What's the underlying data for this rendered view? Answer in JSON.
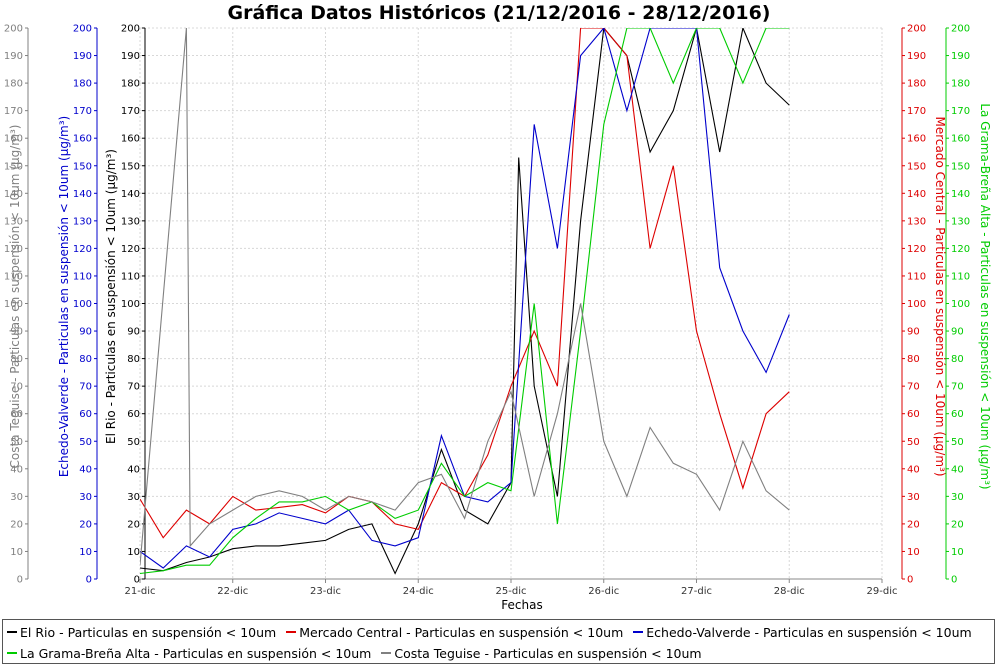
{
  "chart_data": {
    "type": "line",
    "title": "Gráfica Datos Históricos (21/12/2016 - 28/12/2016)",
    "xlabel": "Fechas",
    "x_ticks": [
      "21-dic",
      "22-dic",
      "23-dic",
      "24-dic",
      "25-dic",
      "26-dic",
      "27-dic",
      "28-dic",
      "29-dic"
    ],
    "xlim": [
      "2016-12-21",
      "2016-12-29"
    ],
    "y_ticks": [
      0,
      10,
      20,
      30,
      40,
      50,
      60,
      70,
      80,
      90,
      100,
      110,
      120,
      130,
      140,
      150,
      160,
      170,
      180,
      190,
      200
    ],
    "ylim": [
      0,
      200
    ],
    "grid": true,
    "legend_position": "bottom",
    "axes": [
      {
        "side": "left",
        "label": "Costa Teguise - Particulas en suspensión < 10um (µg/m³)",
        "color": "#808080"
      },
      {
        "side": "left",
        "label": "Echedo-Valverde - Particulas en suspensión < 10um (µg/m³)",
        "color": "#0000cc"
      },
      {
        "side": "left",
        "label": "El Rio - Particulas en suspensión < 10um (µg/m³)",
        "color": "#000000"
      },
      {
        "side": "right",
        "label": "Mercado Central - Particulas en suspensión < 10um (µg/m³)",
        "color": "#dd0000"
      },
      {
        "side": "right",
        "label": "La Grama-Breña Alta - Particulas en suspensión < 10um (µg/m³)",
        "color": "#00cc00"
      }
    ],
    "series": [
      {
        "name": "El Rio - Particulas en suspensión < 10um",
        "color": "#000000",
        "x": [
          "2016-12-21T00:00",
          "2016-12-21T06:00",
          "2016-12-21T12:00",
          "2016-12-21T18:00",
          "2016-12-22T00:00",
          "2016-12-22T06:00",
          "2016-12-22T12:00",
          "2016-12-22T18:00",
          "2016-12-23T00:00",
          "2016-12-23T06:00",
          "2016-12-23T12:00",
          "2016-12-23T18:00",
          "2016-12-24T00:00",
          "2016-12-24T06:00",
          "2016-12-24T12:00",
          "2016-12-24T18:00",
          "2016-12-25T00:00",
          "2016-12-25T02:00",
          "2016-12-25T06:00",
          "2016-12-25T12:00",
          "2016-12-25T18:00",
          "2016-12-26T00:00",
          "2016-12-26T06:00",
          "2016-12-26T12:00",
          "2016-12-26T18:00",
          "2016-12-27T00:00",
          "2016-12-27T06:00",
          "2016-12-27T12:00",
          "2016-12-27T18:00",
          "2016-12-28T00:00"
        ],
        "values": [
          4,
          3,
          6,
          8,
          11,
          12,
          12,
          13,
          14,
          18,
          20,
          2,
          20,
          47,
          25,
          20,
          35,
          153,
          70,
          30,
          130,
          200,
          190,
          155,
          170,
          200,
          155,
          200,
          180,
          172
        ]
      },
      {
        "name": "Mercado Central - Particulas en suspensión < 10um",
        "color": "#dd0000",
        "x": [
          "2016-12-21T00:00",
          "2016-12-21T06:00",
          "2016-12-21T12:00",
          "2016-12-21T18:00",
          "2016-12-22T00:00",
          "2016-12-22T06:00",
          "2016-12-22T12:00",
          "2016-12-22T18:00",
          "2016-12-23T00:00",
          "2016-12-23T06:00",
          "2016-12-23T12:00",
          "2016-12-23T18:00",
          "2016-12-24T00:00",
          "2016-12-24T06:00",
          "2016-12-24T12:00",
          "2016-12-24T18:00",
          "2016-12-25T00:00",
          "2016-12-25T06:00",
          "2016-12-25T12:00",
          "2016-12-25T18:00",
          "2016-12-26T00:00",
          "2016-12-26T06:00",
          "2016-12-26T12:00",
          "2016-12-26T18:00",
          "2016-12-27T00:00",
          "2016-12-27T06:00",
          "2016-12-27T12:00",
          "2016-12-27T18:00",
          "2016-12-28T00:00"
        ],
        "values": [
          29,
          15,
          25,
          20,
          30,
          25,
          26,
          27,
          24,
          30,
          28,
          20,
          18,
          35,
          30,
          45,
          70,
          90,
          70,
          200,
          200,
          190,
          120,
          150,
          90,
          60,
          33,
          60,
          68
        ]
      },
      {
        "name": "Echedo-Valverde - Particulas en suspensión < 10um",
        "color": "#0000cc",
        "x": [
          "2016-12-21T00:00",
          "2016-12-21T06:00",
          "2016-12-21T12:00",
          "2016-12-21T18:00",
          "2016-12-22T00:00",
          "2016-12-22T06:00",
          "2016-12-22T12:00",
          "2016-12-22T18:00",
          "2016-12-23T00:00",
          "2016-12-23T06:00",
          "2016-12-23T12:00",
          "2016-12-23T18:00",
          "2016-12-24T00:00",
          "2016-12-24T06:00",
          "2016-12-24T12:00",
          "2016-12-24T18:00",
          "2016-12-25T00:00",
          "2016-12-25T06:00",
          "2016-12-25T12:00",
          "2016-12-25T18:00",
          "2016-12-26T00:00",
          "2016-12-26T06:00",
          "2016-12-26T12:00",
          "2016-12-26T18:00",
          "2016-12-27T00:00",
          "2016-12-27T06:00",
          "2016-12-27T12:00",
          "2016-12-27T18:00",
          "2016-12-28T00:00"
        ],
        "values": [
          10,
          4,
          12,
          8,
          18,
          20,
          24,
          22,
          20,
          25,
          14,
          12,
          15,
          52,
          30,
          28,
          35,
          165,
          120,
          190,
          200,
          170,
          200,
          200,
          200,
          113,
          90,
          75,
          96
        ]
      },
      {
        "name": "La Grama-Breña Alta - Particulas en suspensión < 10um",
        "color": "#00cc00",
        "x": [
          "2016-12-21T00:00",
          "2016-12-21T06:00",
          "2016-12-21T12:00",
          "2016-12-21T18:00",
          "2016-12-22T00:00",
          "2016-12-22T06:00",
          "2016-12-22T12:00",
          "2016-12-22T18:00",
          "2016-12-23T00:00",
          "2016-12-23T06:00",
          "2016-12-23T12:00",
          "2016-12-23T18:00",
          "2016-12-24T00:00",
          "2016-12-24T06:00",
          "2016-12-24T12:00",
          "2016-12-24T18:00",
          "2016-12-25T00:00",
          "2016-12-25T06:00",
          "2016-12-25T12:00",
          "2016-12-25T18:00",
          "2016-12-26T00:00",
          "2016-12-26T06:00",
          "2016-12-26T12:00",
          "2016-12-26T18:00",
          "2016-12-27T00:00",
          "2016-12-27T06:00",
          "2016-12-27T12:00",
          "2016-12-27T18:00",
          "2016-12-28T00:00"
        ],
        "values": [
          2,
          3,
          5,
          5,
          15,
          22,
          28,
          28,
          30,
          25,
          28,
          22,
          25,
          42,
          30,
          35,
          32,
          100,
          20,
          90,
          165,
          200,
          200,
          180,
          200,
          200,
          180,
          200,
          200
        ]
      },
      {
        "name": "Costa Teguise - Particulas en suspensión < 10um",
        "color": "#808080",
        "x": [
          "2016-12-21T00:00",
          "2016-12-21T12:00",
          "2016-12-21T13:00",
          "2016-12-21T18:00",
          "2016-12-22T00:00",
          "2016-12-22T06:00",
          "2016-12-22T12:00",
          "2016-12-22T18:00",
          "2016-12-23T00:00",
          "2016-12-23T06:00",
          "2016-12-23T12:00",
          "2016-12-23T18:00",
          "2016-12-24T00:00",
          "2016-12-24T06:00",
          "2016-12-24T12:00",
          "2016-12-24T18:00",
          "2016-12-25T00:00",
          "2016-12-25T06:00",
          "2016-12-25T12:00",
          "2016-12-25T18:00",
          "2016-12-26T00:00",
          "2016-12-26T06:00",
          "2016-12-26T12:00",
          "2016-12-26T18:00",
          "2016-12-27T00:00",
          "2016-12-27T06:00",
          "2016-12-27T12:00",
          "2016-12-27T18:00",
          "2016-12-28T00:00"
        ],
        "values": [
          5,
          200,
          12,
          20,
          25,
          30,
          32,
          30,
          25,
          30,
          28,
          25,
          35,
          38,
          22,
          50,
          68,
          30,
          60,
          100,
          50,
          30,
          55,
          42,
          38,
          25,
          50,
          32,
          25
        ]
      }
    ]
  }
}
